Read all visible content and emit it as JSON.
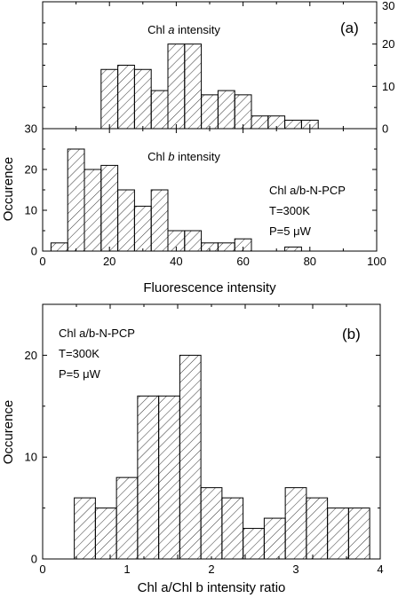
{
  "chart_data": [
    {
      "type": "bar",
      "panel_label": "(a)",
      "annotation": {
        "prefix": "Chl ",
        "italic": "a",
        "suffix": " intensity"
      },
      "x": [
        20,
        25,
        30,
        35,
        40,
        45,
        50,
        55,
        60,
        65,
        70,
        75,
        80
      ],
      "bin_width": 5,
      "values": [
        14,
        15,
        14,
        9,
        20,
        20,
        8,
        9,
        8,
        3,
        3,
        2,
        2
      ],
      "xlim": [
        0,
        100
      ],
      "ylim": [
        0,
        30
      ],
      "y_ticks_right": [
        "0",
        "10",
        "20",
        "30"
      ],
      "y_tick_left_top": "30",
      "xlabel": "",
      "ylabel": "",
      "grid": false
    },
    {
      "type": "bar",
      "annotation": {
        "prefix": "Chl ",
        "italic": "b",
        "suffix": " intensity"
      },
      "x": [
        5,
        10,
        15,
        20,
        25,
        30,
        35,
        40,
        45,
        50,
        55,
        60,
        75
      ],
      "bin_width": 5,
      "values": [
        2,
        25,
        20,
        21,
        15,
        11,
        15,
        5,
        5,
        2,
        2,
        3,
        1
      ],
      "xlim": [
        0,
        100
      ],
      "ylim": [
        0,
        30
      ],
      "x_ticks": [
        "0",
        "20",
        "40",
        "60",
        "80",
        "100"
      ],
      "y_ticks": [
        "0",
        "10",
        "20"
      ],
      "xlabel": "Fluorescence intensity",
      "ylabel": "Occurence",
      "info": [
        "Chl a/b-N-PCP",
        "T=300K",
        "P=5 μW"
      ],
      "grid": false
    },
    {
      "type": "bar",
      "panel_label": "(b)",
      "x": [
        0.5,
        0.75,
        1.0,
        1.25,
        1.5,
        1.75,
        2.0,
        2.25,
        2.5,
        2.75,
        3.0,
        3.25,
        3.5,
        3.75
      ],
      "bin_width": 0.25,
      "values": [
        6,
        5,
        8,
        16,
        16,
        20,
        7,
        6,
        3,
        4,
        7,
        6,
        5,
        5
      ],
      "xlim": [
        0,
        4
      ],
      "ylim": [
        0,
        25
      ],
      "x_ticks": [
        "0",
        "1",
        "2",
        "3",
        "4"
      ],
      "y_ticks": [
        "0",
        "10",
        "20"
      ],
      "xlabel": "Chl a/Chl b intensity ratio",
      "ylabel": "Occurence",
      "info": [
        "Chl a/b-N-PCP",
        "T=300K",
        "P=5 μW"
      ],
      "grid": false
    }
  ]
}
